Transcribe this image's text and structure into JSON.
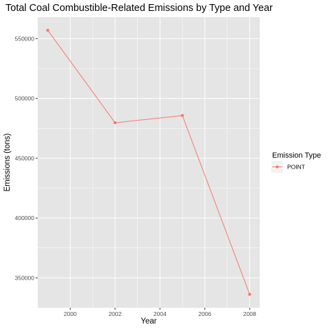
{
  "chart_data": {
    "type": "line",
    "title": "Total Coal Combustible-Related Emissions by Type and Year",
    "xlabel": "Year",
    "ylabel": "Emissions (tons)",
    "x": [
      1999,
      2002,
      2005,
      2008
    ],
    "series": [
      {
        "name": "POINT",
        "values": [
          557000,
          479700,
          485700,
          336200
        ],
        "color": "#f8766d"
      }
    ],
    "xlim": [
      1998.55,
      2008.45
    ],
    "ylim": [
      325000,
      568000
    ],
    "x_ticks": [
      2000,
      2002,
      2004,
      2006,
      2008
    ],
    "x_tick_labels": [
      "2000",
      "2002",
      "2004",
      "2006",
      "2008"
    ],
    "y_ticks": [
      350000,
      400000,
      450000,
      500000,
      550000
    ],
    "y_tick_labels": [
      "350000",
      "400000",
      "450000",
      "500000",
      "550000"
    ],
    "grid": true,
    "legend": {
      "title": "Emission Type",
      "position": "right"
    },
    "panel_background": "#e5e5e5",
    "grid_color": "#ffffff"
  }
}
